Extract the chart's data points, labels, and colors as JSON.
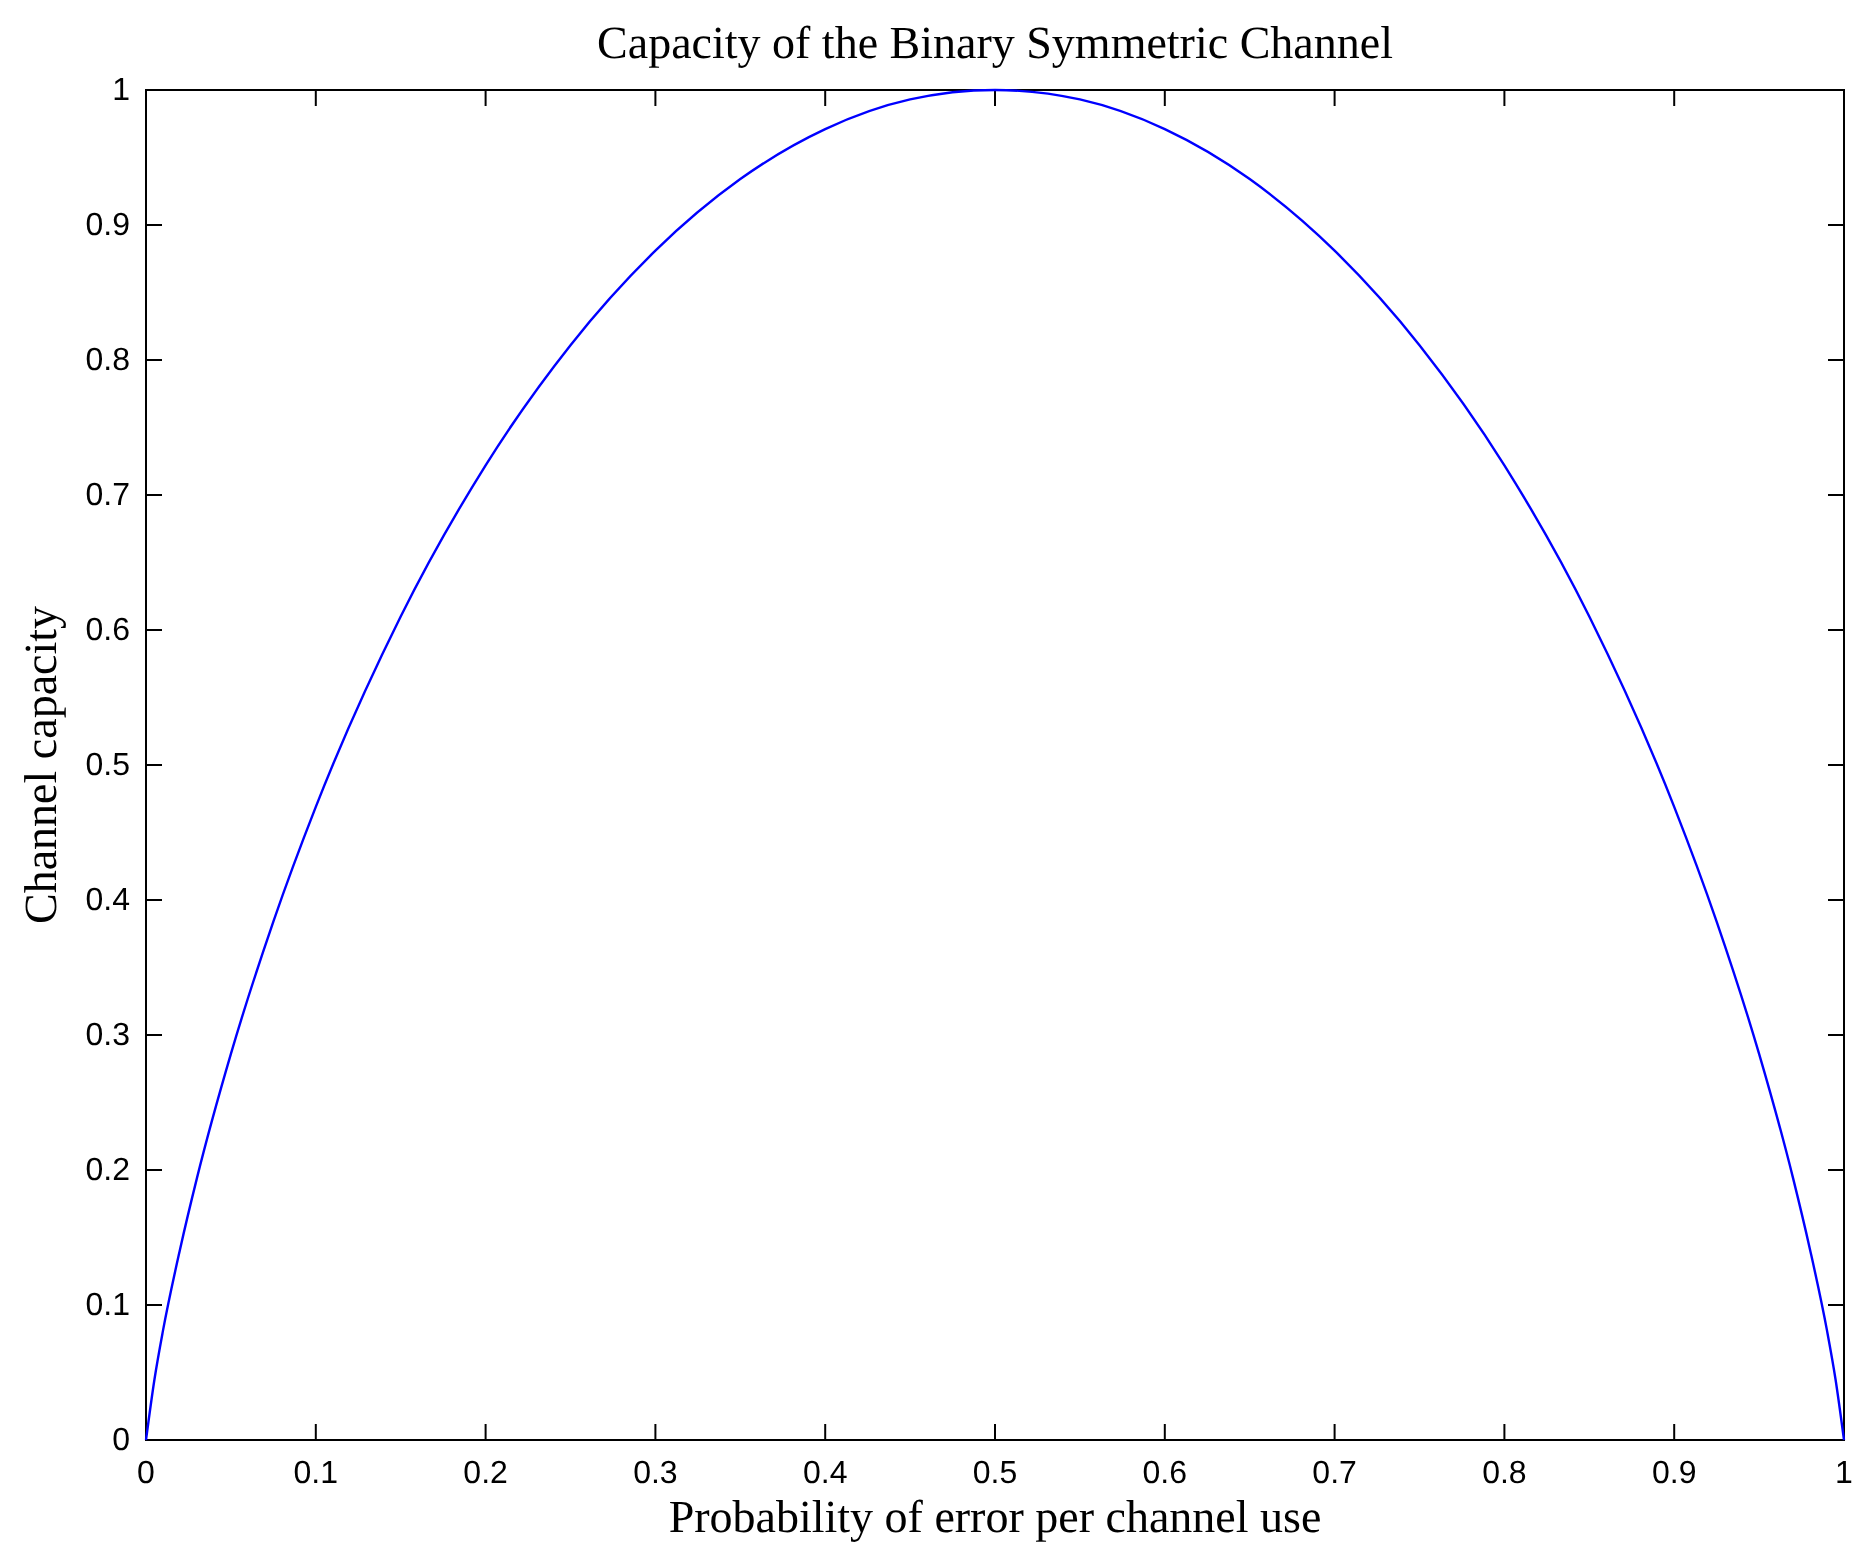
{
  "chart_data": {
    "type": "line",
    "title": "Capacity of the Binary Symmetric Channel",
    "xlabel": "Probability of error per channel use",
    "ylabel": "Channel capacity",
    "xlim": [
      0,
      1
    ],
    "ylim": [
      0,
      1
    ],
    "xticks": [
      0,
      0.1,
      0.2,
      0.3,
      0.4,
      0.5,
      0.6,
      0.7,
      0.8,
      0.9,
      1
    ],
    "yticks": [
      0,
      0.1,
      0.2,
      0.3,
      0.4,
      0.5,
      0.6,
      0.7,
      0.8,
      0.9,
      1
    ],
    "x": [
      0,
      0.005,
      0.01,
      0.02,
      0.03,
      0.05,
      0.075,
      0.1,
      0.15,
      0.2,
      0.25,
      0.3,
      0.35,
      0.4,
      0.45,
      0.5,
      0.55,
      0.6,
      0.65,
      0.7,
      0.75,
      0.8,
      0.85,
      0.9,
      0.925,
      0.95,
      0.97,
      0.98,
      0.99,
      0.995,
      1
    ],
    "series": [
      {
        "color": "#0000ff",
        "values": [
          0,
          0.045,
          0.081,
          0.141,
          0.194,
          0.286,
          0.384,
          0.469,
          0.61,
          0.722,
          0.811,
          0.881,
          0.934,
          0.971,
          0.993,
          1,
          0.993,
          0.971,
          0.934,
          0.881,
          0.811,
          0.722,
          0.61,
          0.469,
          0.384,
          0.286,
          0.194,
          0.141,
          0.081,
          0.045,
          0
        ]
      }
    ],
    "line_style": "solid"
  }
}
